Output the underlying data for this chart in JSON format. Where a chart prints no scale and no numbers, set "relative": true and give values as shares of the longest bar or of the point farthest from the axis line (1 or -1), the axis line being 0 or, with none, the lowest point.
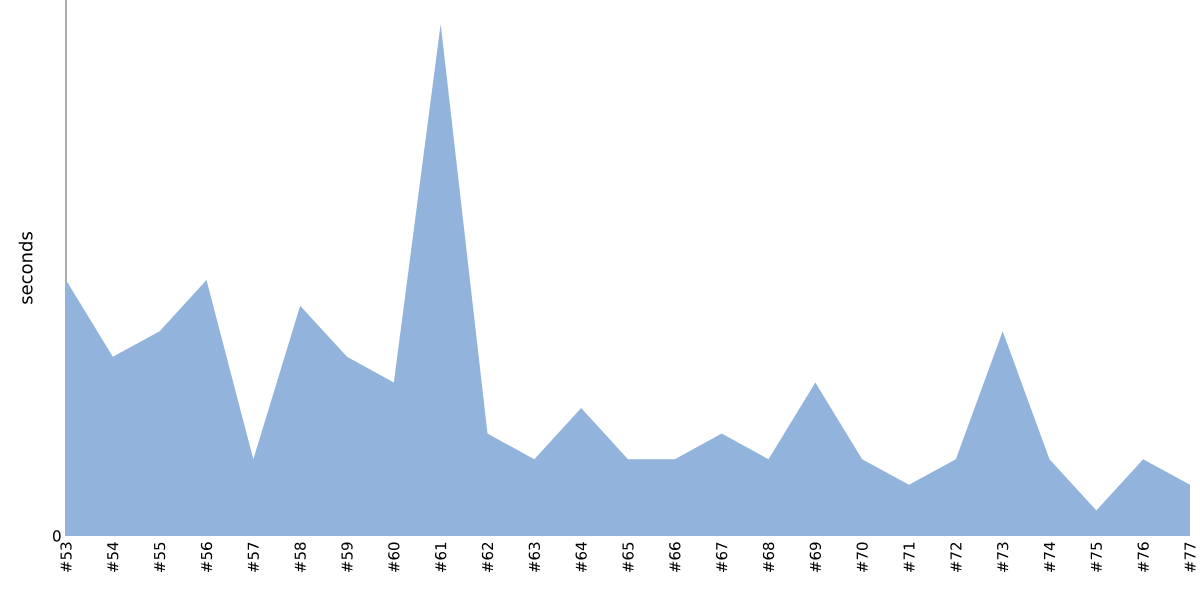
{
  "chart_data": {
    "type": "area",
    "ylabel": "seconds",
    "relative": true,
    "categories": [
      "#53",
      "#54",
      "#55",
      "#56",
      "#57",
      "#58",
      "#59",
      "#60",
      "#61",
      "#62",
      "#63",
      "#64",
      "#65",
      "#66",
      "#67",
      "#68",
      "#69",
      "#70",
      "#71",
      "#72",
      "#73",
      "#74",
      "#75",
      "#76",
      "#77"
    ],
    "series": [
      {
        "color": "#92b3dc",
        "values": [
          0.5,
          0.35,
          0.4,
          0.5,
          0.15,
          0.45,
          0.35,
          0.3,
          1,
          0.2,
          0.15,
          0.25,
          0.15,
          0.15,
          0.2,
          0.15,
          0.3,
          0.15,
          0.1,
          0.15,
          0.4,
          0.15,
          0.05,
          0.15,
          0.1
        ]
      }
    ],
    "annotations": [
      {
        "text": "0",
        "y": 0
      }
    ]
  }
}
